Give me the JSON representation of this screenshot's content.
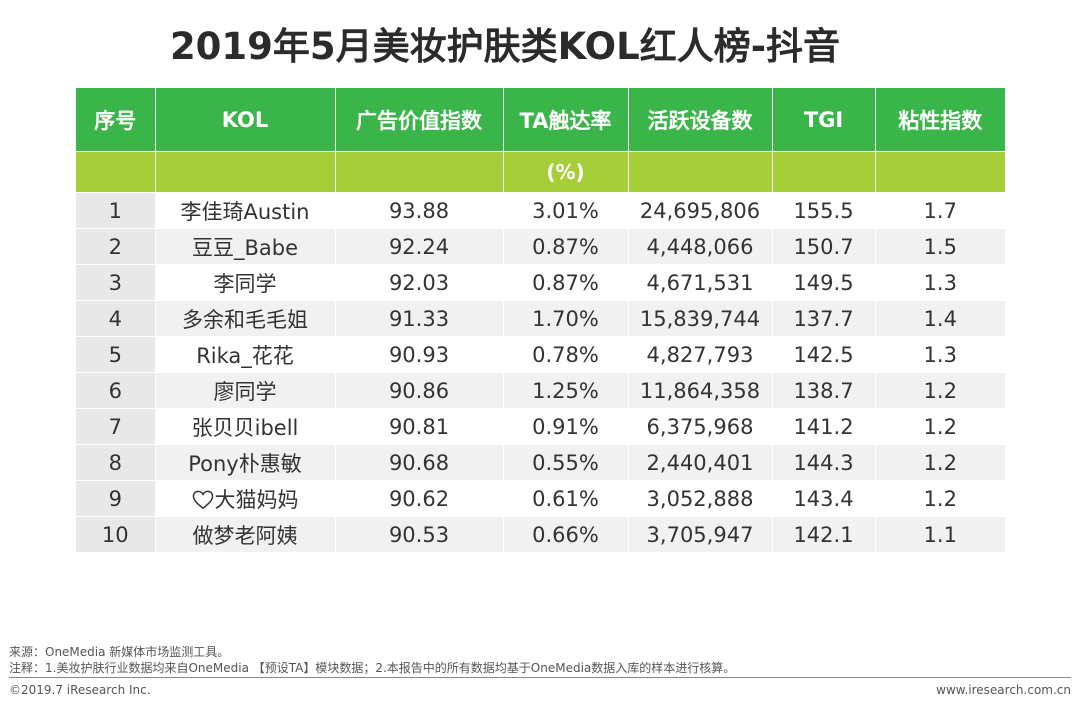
{
  "title": "2019年5月美妆护肤类KOL红人榜-抖音",
  "table": {
    "headers": [
      "序号",
      "KOL",
      "广告价值指数",
      "TA触达率",
      "活跃设备数",
      "TGI",
      "粘性指数"
    ],
    "subheaders": [
      "",
      "",
      "",
      "(%)",
      "",
      "",
      ""
    ],
    "rows": [
      {
        "rank": "1",
        "kol": "李佳琦Austin",
        "ad_value": "93.88",
        "ta_reach": "3.01%",
        "devices": "24,695,806",
        "tgi": "155.5",
        "stickiness": "1.7"
      },
      {
        "rank": "2",
        "kol": "豆豆_Babe",
        "ad_value": "92.24",
        "ta_reach": "0.87%",
        "devices": "4,448,066",
        "tgi": "150.7",
        "stickiness": "1.5"
      },
      {
        "rank": "3",
        "kol": "李同学",
        "ad_value": "92.03",
        "ta_reach": "0.87%",
        "devices": "4,671,531",
        "tgi": "149.5",
        "stickiness": "1.3"
      },
      {
        "rank": "4",
        "kol": "多余和毛毛姐",
        "ad_value": "91.33",
        "ta_reach": "1.70%",
        "devices": "15,839,744",
        "tgi": "137.7",
        "stickiness": "1.4"
      },
      {
        "rank": "5",
        "kol": "Rika_花花",
        "ad_value": "90.93",
        "ta_reach": "0.78%",
        "devices": "4,827,793",
        "tgi": "142.5",
        "stickiness": "1.3"
      },
      {
        "rank": "6",
        "kol": "廖同学",
        "ad_value": "90.86",
        "ta_reach": "1.25%",
        "devices": "11,864,358",
        "tgi": "138.7",
        "stickiness": "1.2"
      },
      {
        "rank": "7",
        "kol": "张贝贝ibell",
        "ad_value": "90.81",
        "ta_reach": "0.91%",
        "devices": "6,375,968",
        "tgi": "141.2",
        "stickiness": "1.2"
      },
      {
        "rank": "8",
        "kol": "Pony朴惠敏",
        "ad_value": "90.68",
        "ta_reach": "0.55%",
        "devices": "2,440,401",
        "tgi": "144.3",
        "stickiness": "1.2"
      },
      {
        "rank": "9",
        "kol": "大猫妈妈",
        "kol_icon": "heart-icon",
        "ad_value": "90.62",
        "ta_reach": "0.61%",
        "devices": "3,052,888",
        "tgi": "143.4",
        "stickiness": "1.2"
      },
      {
        "rank": "10",
        "kol": "做梦老阿姨",
        "ad_value": "90.53",
        "ta_reach": "0.66%",
        "devices": "3,705,947",
        "tgi": "142.1",
        "stickiness": "1.1"
      }
    ]
  },
  "footer": {
    "source": "来源：OneMedia 新媒体市场监测工具。",
    "note": "注释：1.美妆护肤行业数据均来自OneMedia 【预设TA】模块数据；2.本报告中的所有数据均基于OneMedia数据入库的样本进行核算。",
    "copyright": "©2019.7 iResearch Inc.",
    "website": "www.iresearch.com.cn"
  },
  "colors": {
    "header_green": "#39b54a",
    "subheader_green": "#a6ce39",
    "row_alt": "#f1f1f1"
  }
}
